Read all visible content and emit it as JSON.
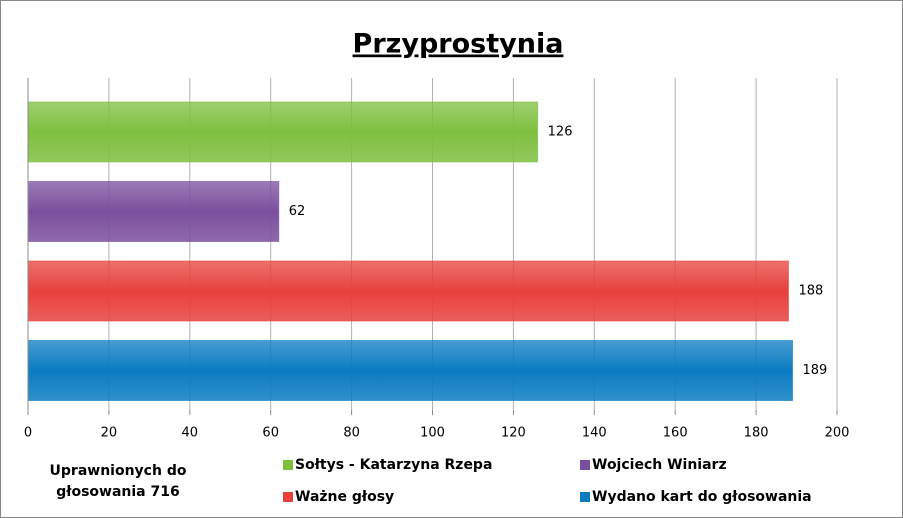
{
  "chart_data": {
    "type": "hbar",
    "title": "Przyprostynia",
    "annotation": [
      "Uprawnionych do",
      "głosowania  716"
    ],
    "series": [
      {
        "name": "Sołtys - Katarzyna Rzepa",
        "color": "#7fbf3f",
        "values": [
          126
        ]
      },
      {
        "name": "Wojciech Winiarz",
        "color": "#7b4f9d",
        "values": [
          62
        ]
      },
      {
        "name": "Ważne głosy",
        "color": "#e8413c",
        "values": [
          188
        ]
      },
      {
        "name": "Wydano kart do głosowania",
        "color": "#0a7cc1",
        "values": [
          189
        ]
      }
    ],
    "xlim": [
      0,
      200
    ],
    "xticks": [
      0,
      20,
      40,
      60,
      80,
      100,
      120,
      140,
      160,
      180,
      200
    ],
    "grid": true
  }
}
